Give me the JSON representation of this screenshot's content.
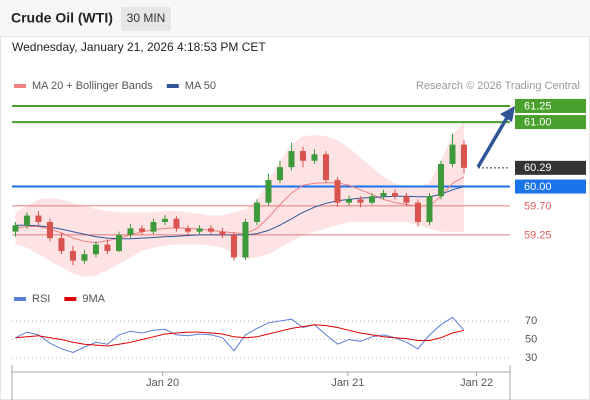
{
  "header": {
    "title": "Crude Oil (WTI)",
    "interval": "30 MIN",
    "datetime": "Wednesday, January 21, 2026 4:18:53 PM CET"
  },
  "chart_data": [
    {
      "type": "candlestick",
      "source": "Research © 2026 Trading Central",
      "up_color": "#3c9a3c",
      "down_color": "#d9534f",
      "xlim": [
        -0.3,
        43
      ],
      "ylim": [
        58.55,
        61.42
      ],
      "xticks": [
        {
          "value": 12.8,
          "label": "Jan 20"
        },
        {
          "value": 28.9,
          "label": "Jan 21"
        },
        {
          "value": 40.1,
          "label": "Jan 22"
        }
      ],
      "ohlc": [
        [
          59.3,
          59.45,
          59.22,
          59.4
        ],
        [
          59.4,
          59.6,
          59.35,
          59.55
        ],
        [
          59.55,
          59.62,
          59.4,
          59.45
        ],
        [
          59.45,
          59.5,
          59.15,
          59.2
        ],
        [
          59.2,
          59.28,
          58.95,
          59.0
        ],
        [
          59.0,
          59.08,
          58.78,
          58.85
        ],
        [
          58.85,
          59.02,
          58.8,
          58.95
        ],
        [
          58.95,
          59.15,
          58.9,
          59.1
        ],
        [
          59.1,
          59.18,
          58.95,
          59.0
        ],
        [
          59.0,
          59.3,
          58.98,
          59.25
        ],
        [
          59.25,
          59.42,
          59.2,
          59.35
        ],
        [
          59.35,
          59.4,
          59.25,
          59.3
        ],
        [
          59.3,
          59.5,
          59.26,
          59.45
        ],
        [
          59.45,
          59.56,
          59.4,
          59.5
        ],
        [
          59.5,
          59.54,
          59.3,
          59.35
        ],
        [
          59.35,
          59.4,
          59.25,
          59.3
        ],
        [
          59.3,
          59.4,
          59.26,
          59.35
        ],
        [
          59.35,
          59.4,
          59.26,
          59.3
        ],
        [
          59.3,
          59.36,
          59.2,
          59.25
        ],
        [
          59.25,
          59.3,
          58.85,
          58.9
        ],
        [
          58.9,
          59.5,
          58.86,
          59.45
        ],
        [
          59.45,
          59.8,
          59.4,
          59.75
        ],
        [
          59.75,
          60.2,
          59.7,
          60.1
        ],
        [
          60.1,
          60.4,
          60.05,
          60.3
        ],
        [
          60.3,
          60.68,
          60.25,
          60.55
        ],
        [
          60.55,
          60.62,
          60.3,
          60.4
        ],
        [
          60.4,
          60.58,
          60.35,
          60.5
        ],
        [
          60.5,
          60.55,
          60.05,
          60.1
        ],
        [
          60.1,
          60.15,
          59.68,
          59.75
        ],
        [
          59.75,
          59.86,
          59.7,
          59.8
        ],
        [
          59.8,
          59.85,
          59.68,
          59.75
        ],
        [
          59.75,
          59.9,
          59.72,
          59.85
        ],
        [
          59.85,
          59.95,
          59.8,
          59.9
        ],
        [
          59.9,
          59.96,
          59.8,
          59.85
        ],
        [
          59.85,
          59.9,
          59.7,
          59.75
        ],
        [
          59.75,
          59.8,
          59.38,
          59.45
        ],
        [
          59.45,
          59.9,
          59.4,
          59.85
        ],
        [
          59.85,
          60.4,
          59.8,
          60.35
        ],
        [
          60.35,
          60.82,
          60.3,
          60.65
        ],
        [
          60.65,
          60.72,
          60.2,
          60.29
        ]
      ],
      "series": [
        {
          "name": "MA 20 + Bollinger Bands",
          "color": "#f08080",
          "band_color": "#fde3e3",
          "values": [
            59.35,
            59.38,
            59.38,
            59.34,
            59.28,
            59.2,
            59.15,
            59.13,
            59.16,
            59.2,
            59.25,
            59.3,
            59.33,
            59.35,
            59.36,
            59.35,
            59.34,
            59.32,
            59.3,
            59.28,
            59.27,
            59.35,
            59.52,
            59.72,
            59.9,
            60.02,
            60.05,
            60.06,
            60.06,
            60.02,
            59.95,
            59.88,
            59.8,
            59.75,
            59.72,
            59.7,
            59.7,
            59.85,
            60.05,
            60.15
          ],
          "upper": [
            59.6,
            59.7,
            59.8,
            59.82,
            59.8,
            59.75,
            59.7,
            59.65,
            59.62,
            59.6,
            59.6,
            59.6,
            59.6,
            59.62,
            59.62,
            59.6,
            59.58,
            59.55,
            59.55,
            59.6,
            59.65,
            59.8,
            60.1,
            60.4,
            60.65,
            60.78,
            60.8,
            60.78,
            60.72,
            60.6,
            60.45,
            60.3,
            60.15,
            60.05,
            60.0,
            60.0,
            60.05,
            60.4,
            60.8,
            61.0
          ],
          "lower": [
            59.1,
            59.05,
            58.95,
            58.85,
            58.75,
            58.65,
            58.6,
            58.62,
            58.7,
            58.8,
            58.9,
            59.0,
            59.05,
            59.08,
            59.1,
            59.1,
            59.1,
            59.08,
            59.05,
            58.95,
            58.88,
            58.9,
            58.95,
            59.05,
            59.15,
            59.25,
            59.3,
            59.35,
            59.4,
            59.45,
            59.45,
            59.45,
            59.45,
            59.45,
            59.45,
            59.4,
            59.35,
            59.3,
            59.3,
            59.3
          ]
        },
        {
          "name": "MA 50",
          "color": "#2f5597",
          "values": [
            59.4,
            59.4,
            59.39,
            59.37,
            59.34,
            59.3,
            59.26,
            59.22,
            59.2,
            59.19,
            59.19,
            59.2,
            59.21,
            59.22,
            59.23,
            59.24,
            59.25,
            59.25,
            59.25,
            59.25,
            59.25,
            59.27,
            59.32,
            59.4,
            59.5,
            59.6,
            59.68,
            59.74,
            59.78,
            59.8,
            59.82,
            59.83,
            59.84,
            59.85,
            59.85,
            59.84,
            59.84,
            59.88,
            59.95,
            60.0
          ]
        }
      ],
      "levels": [
        {
          "value": 61.25,
          "color": "#4aa02c",
          "style": "box"
        },
        {
          "value": 61,
          "label": "61.00",
          "color": "#4aa02c",
          "style": "box"
        },
        {
          "value": 60.29,
          "color": "#333333",
          "style": "box",
          "dashed": true
        },
        {
          "value": 60,
          "label": "60.00",
          "color": "#1a73e8",
          "style": "box"
        },
        {
          "value": 59.7,
          "label": "59.70",
          "color": "#e06060",
          "style": "text"
        },
        {
          "value": 59.25,
          "color": "#e06060",
          "style": "text"
        }
      ]
    },
    {
      "type": "line",
      "xlim": [
        -0.3,
        43
      ],
      "ylim": [
        15,
        84
      ],
      "yticks": [
        30,
        50,
        70
      ],
      "grid": true,
      "series": [
        {
          "name": "RSI",
          "color": "#5b7fd6",
          "values": [
            52,
            58,
            55,
            46,
            40,
            36,
            42,
            47,
            45,
            55,
            59,
            57,
            60,
            61,
            55,
            54,
            56,
            55,
            52,
            38,
            55,
            62,
            68,
            70,
            72,
            63,
            66,
            55,
            45,
            50,
            48,
            53,
            55,
            52,
            47,
            40,
            55,
            66,
            74,
            60
          ]
        },
        {
          "name": "9MA",
          "color": "#e00000",
          "values": [
            52,
            53,
            54,
            52,
            50,
            47,
            45,
            44,
            43,
            45,
            47,
            50,
            53,
            56,
            57,
            58,
            58,
            57,
            56,
            53,
            52,
            53,
            56,
            59,
            62,
            64,
            66,
            65,
            63,
            60,
            57,
            55,
            53,
            52,
            51,
            49,
            49,
            52,
            57,
            60
          ]
        }
      ]
    }
  ]
}
